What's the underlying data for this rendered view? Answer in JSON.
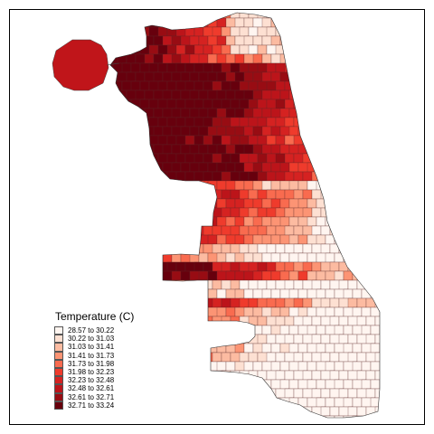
{
  "legend": {
    "title": "Temperature (C)",
    "items": [
      {
        "label": "28.57 to 30.22",
        "color": "#fff5f0"
      },
      {
        "label": "30.22 to 31.03",
        "color": "#fde0d2"
      },
      {
        "label": "31.03 to 31.41",
        "color": "#fcbba1"
      },
      {
        "label": "31.41 to 31.73",
        "color": "#fc9474"
      },
      {
        "label": "31.73 to 31.98",
        "color": "#f96b4f"
      },
      {
        "label": "31.98 to 32.23",
        "color": "#ef3b2c"
      },
      {
        "label": "32.23 to 32.48",
        "color": "#d52221"
      },
      {
        "label": "32.48 to 32.61",
        "color": "#bc141a"
      },
      {
        "label": "32.61 to 32.71",
        "color": "#980c13"
      },
      {
        "label": "32.71 to 33.24",
        "color": "#67000d"
      }
    ]
  }
}
